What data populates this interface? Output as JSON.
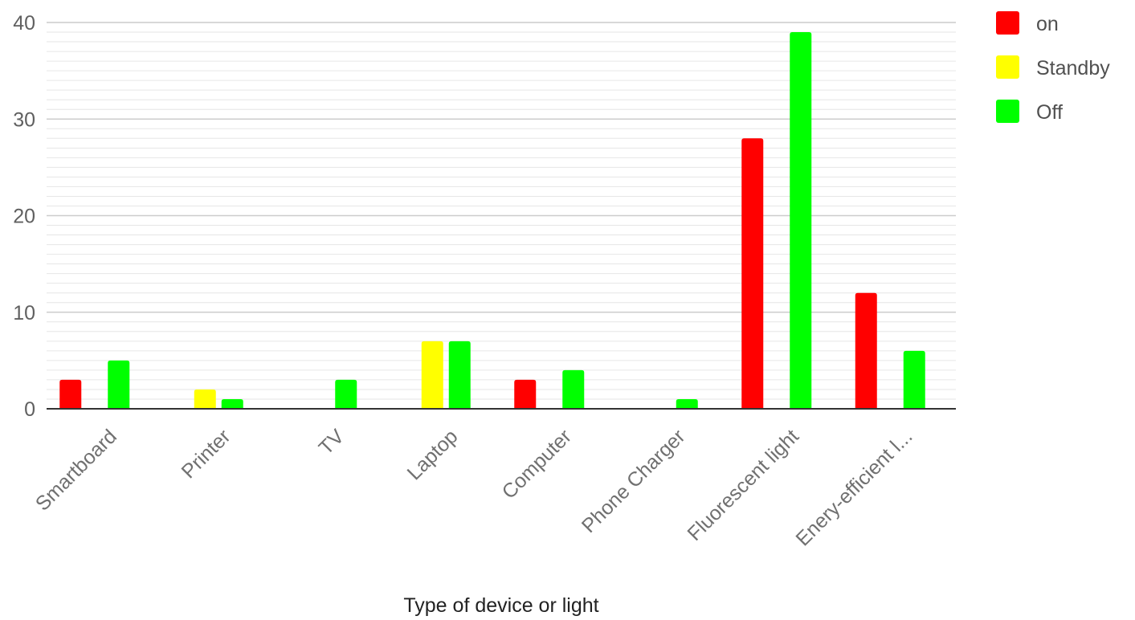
{
  "chart_data": {
    "type": "bar",
    "categories": [
      "Smartboard",
      "Printer",
      "TV",
      "Laptop",
      "Computer",
      "Phone Charger",
      "Fluorescent light",
      "Enery-efficient l..."
    ],
    "series": [
      {
        "name": "on",
        "color": "#ff0000",
        "values": [
          3,
          0,
          0,
          0,
          3,
          0,
          28,
          12
        ]
      },
      {
        "name": "Standby",
        "color": "#ffff00",
        "values": [
          0,
          2,
          0,
          7,
          0,
          0,
          0,
          0
        ]
      },
      {
        "name": "Off",
        "color": "#00ff00",
        "values": [
          5,
          1,
          3,
          7,
          4,
          1,
          39,
          6
        ]
      }
    ],
    "title": "",
    "xlabel": "Type of device or light",
    "ylabel": "",
    "ylim": [
      0,
      40
    ],
    "yticks": [
      0,
      10,
      20,
      30,
      40
    ],
    "minor_grid_step": 1,
    "grid": true,
    "legend_position": "right"
  }
}
